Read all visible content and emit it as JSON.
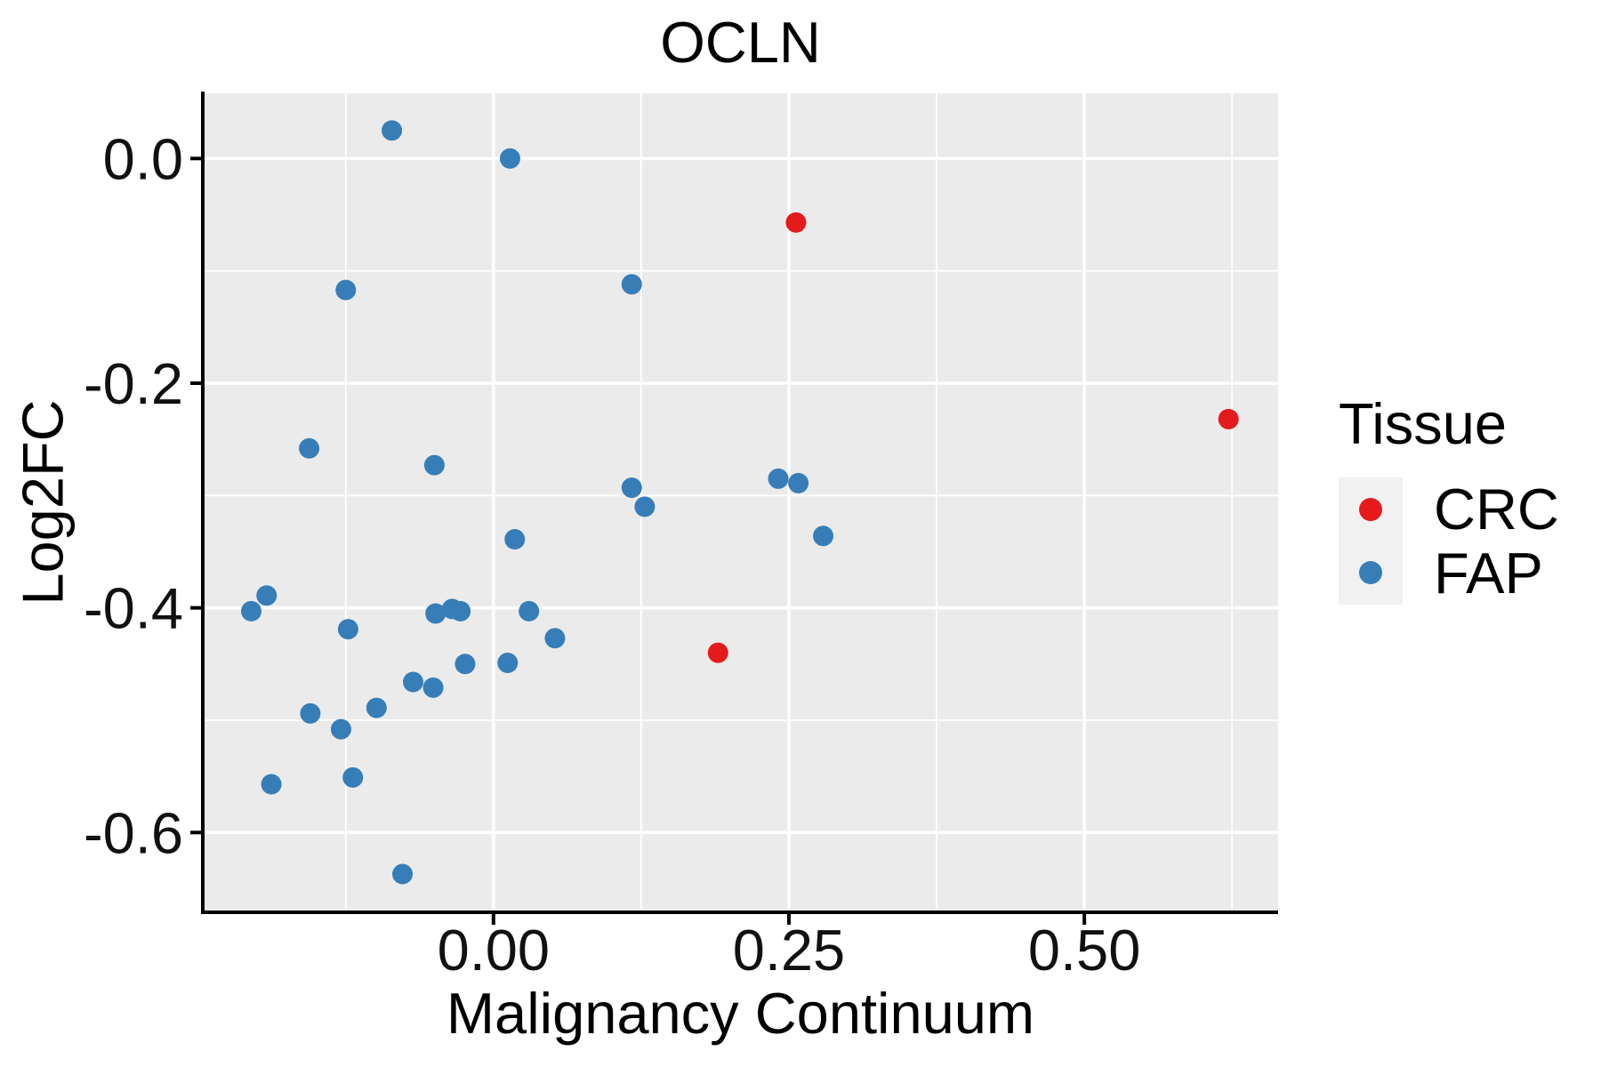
{
  "title": "OCLN",
  "legend": {
    "title": "Tissue",
    "items": [
      {
        "label": "CRC",
        "color": "#E41A1C"
      },
      {
        "label": "FAP",
        "color": "#377EB8"
      }
    ]
  },
  "chart_data": {
    "type": "scatter",
    "title": "OCLN",
    "xlabel": "Malignancy Continuum",
    "ylabel": "Log2FC",
    "xlim": [
      -0.246,
      0.664
    ],
    "ylim": [
      -0.671,
      0.058
    ],
    "x_ticks": [
      0,
      0.25,
      0.5
    ],
    "x_tick_labels": [
      "0.00",
      "0.25",
      "0.50"
    ],
    "y_ticks": [
      0,
      -0.2,
      -0.4,
      -0.6
    ],
    "y_tick_labels": [
      "0.0",
      "-0.2",
      "-0.4",
      "-0.6"
    ],
    "x_minor_gridlines": [
      -0.125,
      0.125,
      0.375,
      0.625
    ],
    "y_minor_gridlines": [
      -0.1,
      -0.3,
      -0.5
    ],
    "grid": true,
    "legend_position": "right",
    "panel_bg": "#EBEBEB",
    "grid_color": "#FFFFFF",
    "axis_color": "#000000",
    "marker_radius": 11.5,
    "series": [
      {
        "name": "CRC",
        "color": "#E41A1C",
        "points": [
          [
            0.256,
            -0.057
          ],
          [
            0.622,
            -0.232
          ],
          [
            0.19,
            -0.44
          ]
        ]
      },
      {
        "name": "FAP",
        "color": "#377EB8",
        "points": [
          [
            -0.086,
            0.025
          ],
          [
            0.014,
            0.0
          ],
          [
            -0.125,
            -0.117
          ],
          [
            0.117,
            -0.112
          ],
          [
            -0.156,
            -0.258
          ],
          [
            -0.05,
            -0.273
          ],
          [
            0.018,
            -0.339
          ],
          [
            0.117,
            -0.293
          ],
          [
            0.128,
            -0.31
          ],
          [
            0.241,
            -0.285
          ],
          [
            0.258,
            -0.289
          ],
          [
            0.279,
            -0.336
          ],
          [
            -0.205,
            -0.403
          ],
          [
            -0.192,
            -0.389
          ],
          [
            -0.123,
            -0.419
          ],
          [
            -0.049,
            -0.405
          ],
          [
            -0.035,
            -0.401
          ],
          [
            -0.028,
            -0.403
          ],
          [
            0.03,
            -0.403
          ],
          [
            0.052,
            -0.427
          ],
          [
            -0.024,
            -0.45
          ],
          [
            0.012,
            -0.449
          ],
          [
            -0.068,
            -0.466
          ],
          [
            -0.051,
            -0.471
          ],
          [
            -0.155,
            -0.494
          ],
          [
            -0.129,
            -0.508
          ],
          [
            -0.099,
            -0.489
          ],
          [
            -0.188,
            -0.557
          ],
          [
            -0.119,
            -0.551
          ],
          [
            -0.077,
            -0.637
          ]
        ]
      }
    ]
  }
}
